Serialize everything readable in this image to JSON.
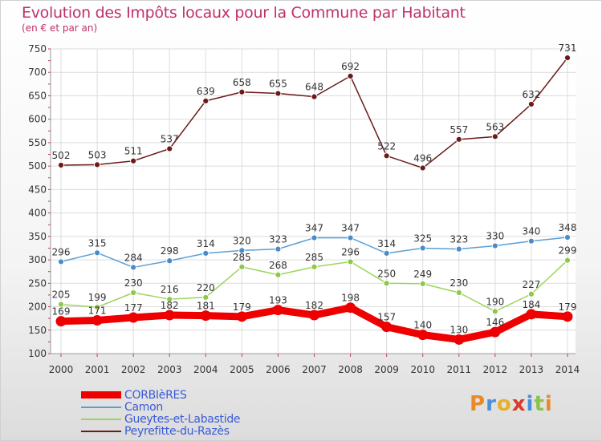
{
  "title": "Evolution des Impôts locaux pour la Commune par Habitant",
  "subtitle": "(en € et par an)",
  "logo": {
    "text": "Proxiti",
    "letters": [
      {
        "ch": "P",
        "color": "#e88a2a"
      },
      {
        "ch": "r",
        "color": "#4a90d9"
      },
      {
        "ch": "o",
        "color": "#e8b02a"
      },
      {
        "ch": "x",
        "color": "#d93a2a"
      },
      {
        "ch": "i",
        "color": "#4a90d9"
      },
      {
        "ch": "t",
        "color": "#8bc34a"
      },
      {
        "ch": "i",
        "color": "#e88a2a"
      }
    ]
  },
  "chart_data": {
    "type": "line",
    "title": "Evolution des Impôts locaux pour la Commune par Habitant",
    "subtitle": "(en € et par an)",
    "xlabel": "",
    "ylabel": "",
    "x": [
      2000,
      2001,
      2002,
      2003,
      2004,
      2005,
      2006,
      2007,
      2008,
      2009,
      2010,
      2011,
      2012,
      2013,
      2014
    ],
    "ylim": [
      100,
      750
    ],
    "yticks": [
      100,
      150,
      200,
      250,
      300,
      350,
      400,
      450,
      500,
      550,
      600,
      650,
      700,
      750
    ],
    "grid": true,
    "legend_position": "bottom-left",
    "series": [
      {
        "name": "Peyrefitte-du-Razès",
        "color": "#6b1a1a",
        "marker": "#6b1a1a",
        "values": [
          502,
          503,
          511,
          537,
          639,
          658,
          655,
          648,
          692,
          522,
          496,
          557,
          563,
          632,
          731
        ]
      },
      {
        "name": "Camon",
        "color": "#5a9fd4",
        "marker": "#4a8cc8",
        "values": [
          296,
          315,
          284,
          298,
          314,
          320,
          323,
          347,
          347,
          314,
          325,
          323,
          330,
          340,
          348
        ]
      },
      {
        "name": "Gueytes-et-Labastide",
        "color": "#9dd45a",
        "marker": "#8cc84a",
        "values": [
          205,
          199,
          230,
          216,
          220,
          285,
          268,
          285,
          296,
          250,
          249,
          230,
          190,
          227,
          299
        ]
      },
      {
        "name": "CORBIèRES",
        "color": "#ee0000",
        "marker": "#ee0000",
        "values": [
          169,
          171,
          177,
          182,
          181,
          179,
          193,
          182,
          198,
          157,
          140,
          130,
          146,
          184,
          179
        ]
      }
    ],
    "legend": [
      "CORBIèRES",
      "Camon",
      "Gueytes-et-Labastide",
      "Peyrefitte-du-Razès"
    ]
  }
}
